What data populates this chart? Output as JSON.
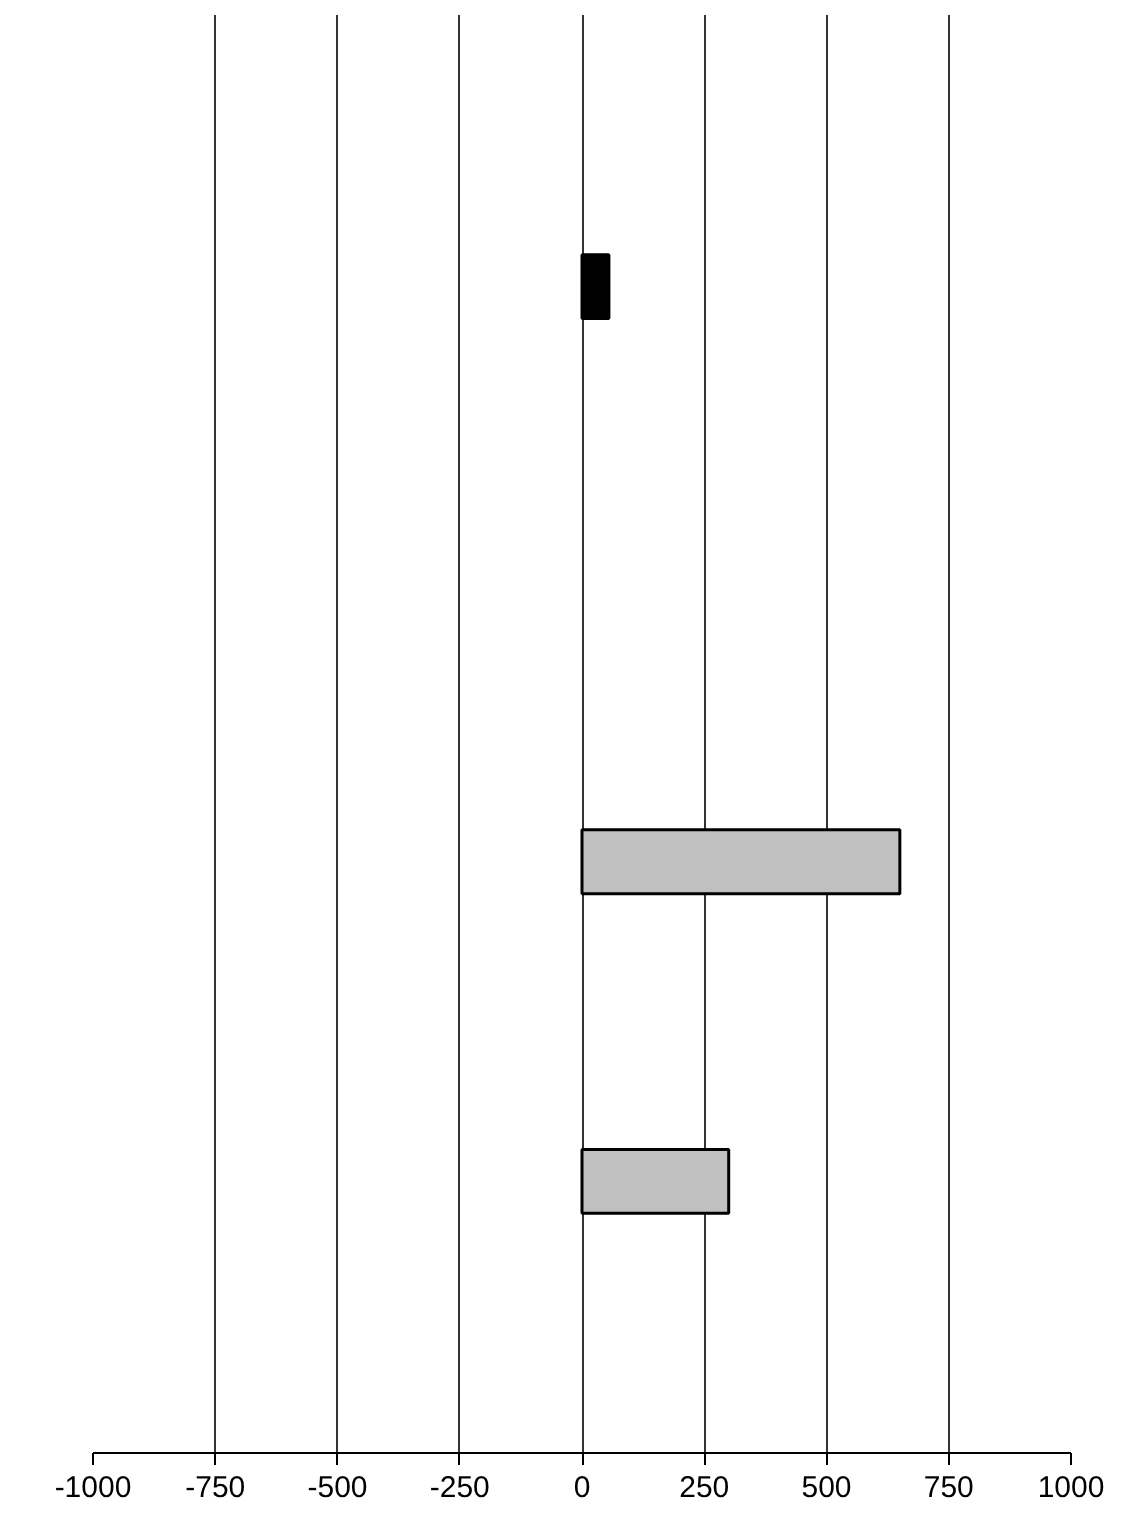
{
  "chart_data": {
    "type": "bar",
    "orientation": "horizontal",
    "categories": [
      null,
      null,
      null,
      null,
      null,
      null,
      null,
      null,
      null
    ],
    "series": [
      {
        "color": "#c0c0c0",
        "values": [
          null,
          null,
          null,
          null,
          null,
          650,
          null,
          300,
          null
        ]
      },
      {
        "color": "#000000",
        "values": [
          null,
          55,
          null,
          null,
          null,
          null,
          null,
          null,
          null
        ]
      }
    ],
    "xlim": [
      -1000,
      1000
    ],
    "xticks": [
      -1000,
      -750,
      -500,
      -250,
      0,
      250,
      500,
      750,
      1000
    ],
    "grid": "x"
  }
}
